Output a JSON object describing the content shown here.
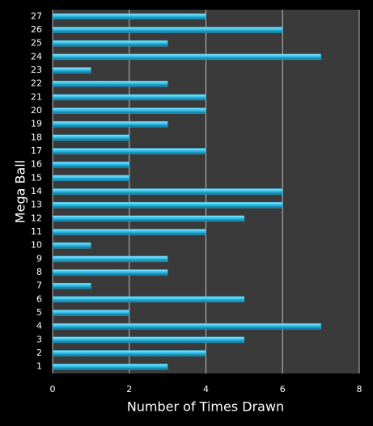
{
  "chart_data": {
    "type": "bar",
    "orientation": "horizontal",
    "x_label": "Number of Times Drawn",
    "y_label": "Mega Ball",
    "categories": [
      "1",
      "2",
      "3",
      "4",
      "5",
      "6",
      "7",
      "8",
      "9",
      "10",
      "11",
      "12",
      "13",
      "14",
      "15",
      "16",
      "17",
      "18",
      "19",
      "20",
      "21",
      "22",
      "23",
      "24",
      "25",
      "26",
      "27"
    ],
    "values": [
      3,
      4,
      5,
      7,
      2,
      5,
      1,
      3,
      3,
      1,
      4,
      5,
      6,
      6,
      2,
      2,
      4,
      2,
      3,
      4,
      4,
      3,
      1,
      7,
      3,
      6,
      4
    ],
    "color": "#29b6e0",
    "xlim": [
      0,
      8
    ],
    "xticks": [
      0,
      2,
      4,
      6,
      8
    ],
    "grid": true
  }
}
